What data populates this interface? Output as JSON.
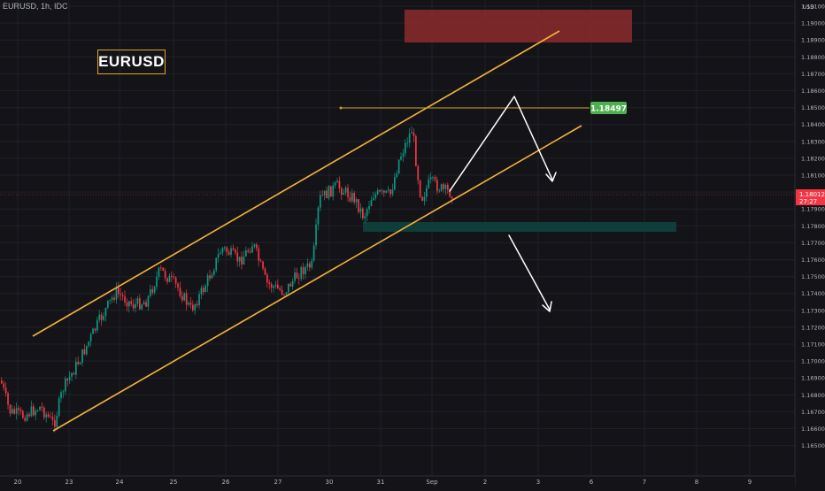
{
  "header": {
    "symbol": "EURUSD, 1h, IDC"
  },
  "title_box": {
    "text": "EURUSD"
  },
  "colors": {
    "background": "#141418",
    "channel": "#f5b23a",
    "up_candle": "#089981",
    "down_candle": "#f23645",
    "resistance_zone": "#8b2a2d",
    "support_zone": "#0f3d39",
    "price_badge": "#f23645",
    "level_badge": "#4caf50"
  },
  "price_axis": {
    "currency": "USD",
    "ticks": [
      "1.19100",
      "1.19000",
      "1.18900",
      "1.18800",
      "1.18700",
      "1.18600",
      "1.18500",
      "1.18400",
      "1.18300",
      "1.18200",
      "1.18100",
      "1.18000",
      "1.17900",
      "1.17800",
      "1.17700",
      "1.17600",
      "1.17500",
      "1.17400",
      "1.17300",
      "1.17200",
      "1.17100",
      "1.17000",
      "1.16900",
      "1.16800",
      "1.16700",
      "1.16600",
      "1.16500"
    ],
    "current_price": "1.18012",
    "countdown": "27:27"
  },
  "time_axis": {
    "ticks": [
      "20",
      "23",
      "24",
      "25",
      "26",
      "27",
      "30",
      "31",
      "Sep",
      "2",
      "3",
      "6",
      "7",
      "8",
      "9"
    ]
  },
  "level": {
    "label": "1.18497"
  }
}
